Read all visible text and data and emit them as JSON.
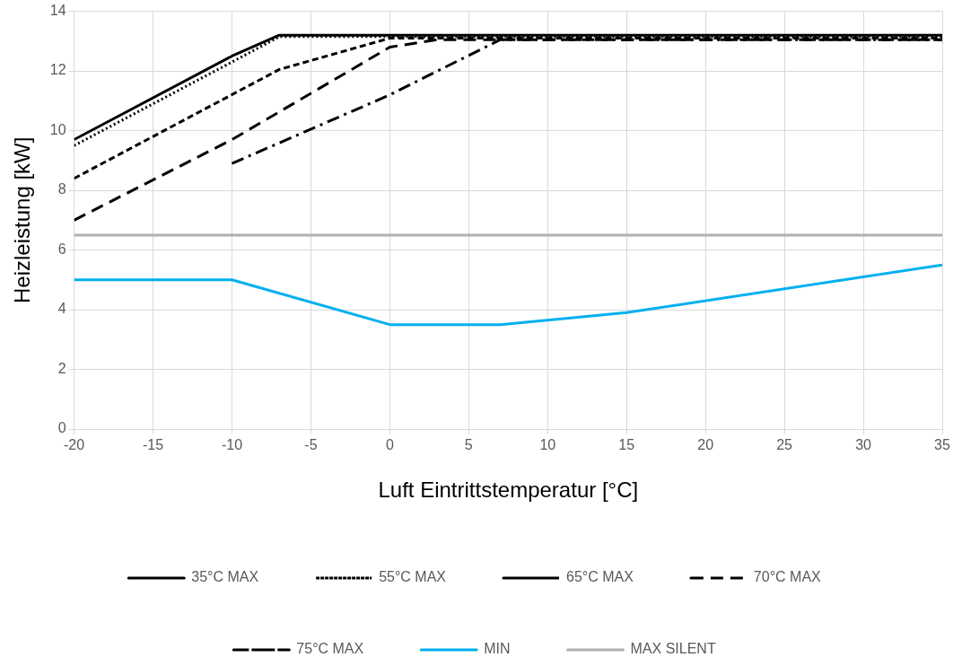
{
  "chart_data": {
    "type": "line",
    "xlabel": "Luft Eintrittstemperatur [°C]",
    "ylabel": "Heizleistung [kW]",
    "xlim": [
      -20,
      35
    ],
    "xticks": [
      -20,
      -15,
      -10,
      -5,
      0,
      5,
      10,
      15,
      20,
      25,
      30,
      35
    ],
    "ylim": [
      0,
      14
    ],
    "yticks": [
      0,
      2,
      4,
      6,
      8,
      10,
      12,
      14
    ],
    "grid": true,
    "legend": "bottom",
    "marker": "none",
    "series": [
      {
        "name": "35°C MAX",
        "color": "#000000",
        "line_style": "solid",
        "x": [
          -20,
          -10,
          -7,
          35
        ],
        "values": [
          9.7,
          12.5,
          13.2,
          13.2
        ]
      },
      {
        "name": "55°C MAX",
        "color": "#000000",
        "line_style": "dotted",
        "x": [
          -20,
          -10,
          -7,
          35
        ],
        "values": [
          9.5,
          12.3,
          13.15,
          13.15
        ]
      },
      {
        "name": "65°C MAX",
        "color": "#000000",
        "line_style": "dashed",
        "x": [
          -20,
          -7,
          0,
          35
        ],
        "values": [
          8.4,
          12.05,
          13.1,
          13.1
        ]
      },
      {
        "name": "70°C MAX",
        "color": "#000000",
        "line_style": "longdash",
        "x": [
          -20,
          -10,
          0,
          3,
          35
        ],
        "values": [
          7.0,
          9.7,
          12.8,
          13.05,
          13.05
        ]
      },
      {
        "name": "75°C MAX",
        "color": "#000000",
        "line_style": "dashdot",
        "x": [
          -10,
          0,
          7,
          35
        ],
        "values": [
          8.9,
          11.2,
          13.05,
          13.05
        ]
      },
      {
        "name": "MIN",
        "color": "#00b0f0",
        "line_style": "solid",
        "x": [
          -20,
          -10,
          0,
          7,
          15,
          35
        ],
        "values": [
          5,
          5,
          3.5,
          3.5,
          3.9,
          5.5
        ]
      },
      {
        "name": "MAX SILENT",
        "color": "#b0b0b0",
        "line_style": "solid",
        "x": [
          -20,
          35
        ],
        "values": [
          6.5,
          6.5
        ]
      }
    ]
  }
}
